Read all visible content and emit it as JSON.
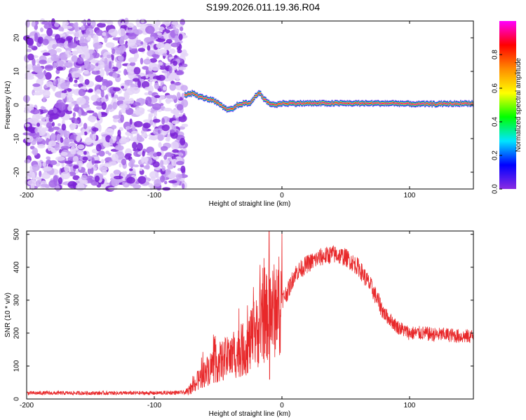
{
  "title": "S199.2026.011.19.36.R04",
  "chart_data": [
    {
      "type": "heatmap",
      "name": "spectrogram",
      "xlabel": "Height of straight line (km)",
      "ylabel": "Frequency (Hz)",
      "xlim": [
        -200,
        150
      ],
      "ylim": [
        -25,
        25
      ],
      "xticks": [
        -200,
        -100,
        0,
        100
      ],
      "yticks": [
        -20,
        -10,
        0,
        10,
        20
      ],
      "noise_region_x": [
        -200,
        -76
      ],
      "signal_start_x": -76,
      "ridge": {
        "x": [
          -76,
          -70,
          -65,
          -60,
          -55,
          -50,
          -45,
          -42,
          -38,
          -35,
          -30,
          -25,
          -20,
          -18,
          -15,
          -10,
          -5,
          0,
          10,
          30,
          60,
          90,
          100,
          120,
          150
        ],
        "freq_hz": [
          3,
          3.5,
          2.5,
          2,
          1.5,
          0.5,
          -1,
          -1.5,
          -1,
          0,
          0.5,
          0.5,
          3,
          4,
          2,
          0.5,
          0,
          0.5,
          0.5,
          0.5,
          0.5,
          0.5,
          0.3,
          0.3,
          0.5
        ]
      },
      "colorbar": {
        "label": "Normalized spectral amplitude",
        "ticks": [
          0.0,
          0.2,
          0.4,
          0.6,
          0.8
        ],
        "tick_labels": [
          "0.0",
          "0.2",
          "0.4",
          "0.6",
          "0.8"
        ],
        "range": [
          0,
          1
        ],
        "colormap": [
          "#ffffff",
          "#8a2be2",
          "#0000ff",
          "#00e5ff",
          "#00ff00",
          "#ffff00",
          "#ff8c00",
          "#ff0000",
          "#ff00ff"
        ]
      }
    },
    {
      "type": "line",
      "name": "snr",
      "xlabel": "Height of straight line (km)",
      "ylabel": "SNR (10 * v/v)",
      "xlim": [
        -200,
        150
      ],
      "ylim": [
        0,
        510
      ],
      "xticks": [
        -200,
        -100,
        0,
        100
      ],
      "yticks": [
        0,
        100,
        200,
        300,
        400,
        500
      ],
      "color": "#e8282a",
      "envelope": {
        "x": [
          -200,
          -150,
          -100,
          -75,
          -70,
          -65,
          -60,
          -55,
          -50,
          -45,
          -40,
          -35,
          -30,
          -25,
          -20,
          -15,
          -10,
          -5,
          0,
          5,
          10,
          20,
          30,
          40,
          50,
          60,
          70,
          80,
          90,
          100,
          110,
          120,
          130,
          140,
          150
        ],
        "y": [
          18,
          18,
          18,
          20,
          35,
          60,
          80,
          100,
          110,
          120,
          125,
          140,
          150,
          170,
          200,
          230,
          260,
          270,
          300,
          330,
          380,
          410,
          430,
          440,
          430,
          400,
          340,
          260,
          220,
          200,
          200,
          195,
          195,
          190,
          190
        ]
      },
      "spike": {
        "x": -10,
        "y": 510
      }
    }
  ]
}
